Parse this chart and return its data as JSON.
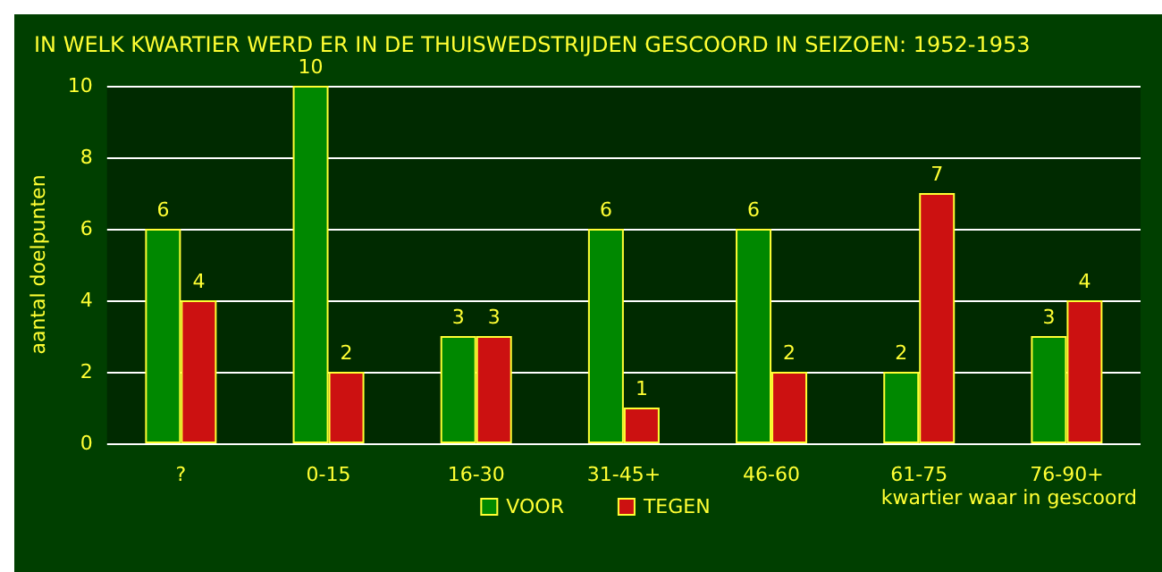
{
  "chart_data": {
    "type": "bar",
    "title": "IN WELK KWARTIER WERD ER IN DE THUISWEDSTRIJDEN GESCOORD IN SEIZOEN: 1952-1953",
    "xlabel": "kwartier waar in gescoord",
    "ylabel": "aantal doelpunten",
    "categories": [
      "?",
      "0-15",
      "16-30",
      "31-45+",
      "46-60",
      "61-75",
      "76-90+"
    ],
    "series": [
      {
        "name": "VOOR",
        "color": "#008800",
        "values": [
          6,
          10,
          3,
          6,
          6,
          2,
          3
        ]
      },
      {
        "name": "TEGEN",
        "color": "#cc1111",
        "values": [
          4,
          2,
          3,
          1,
          2,
          7,
          4
        ]
      }
    ],
    "ylim": [
      0,
      10
    ],
    "yticks": [
      0,
      2,
      4,
      6,
      8,
      10
    ],
    "grid": "y",
    "legend": "bottom",
    "data_labels": true
  }
}
